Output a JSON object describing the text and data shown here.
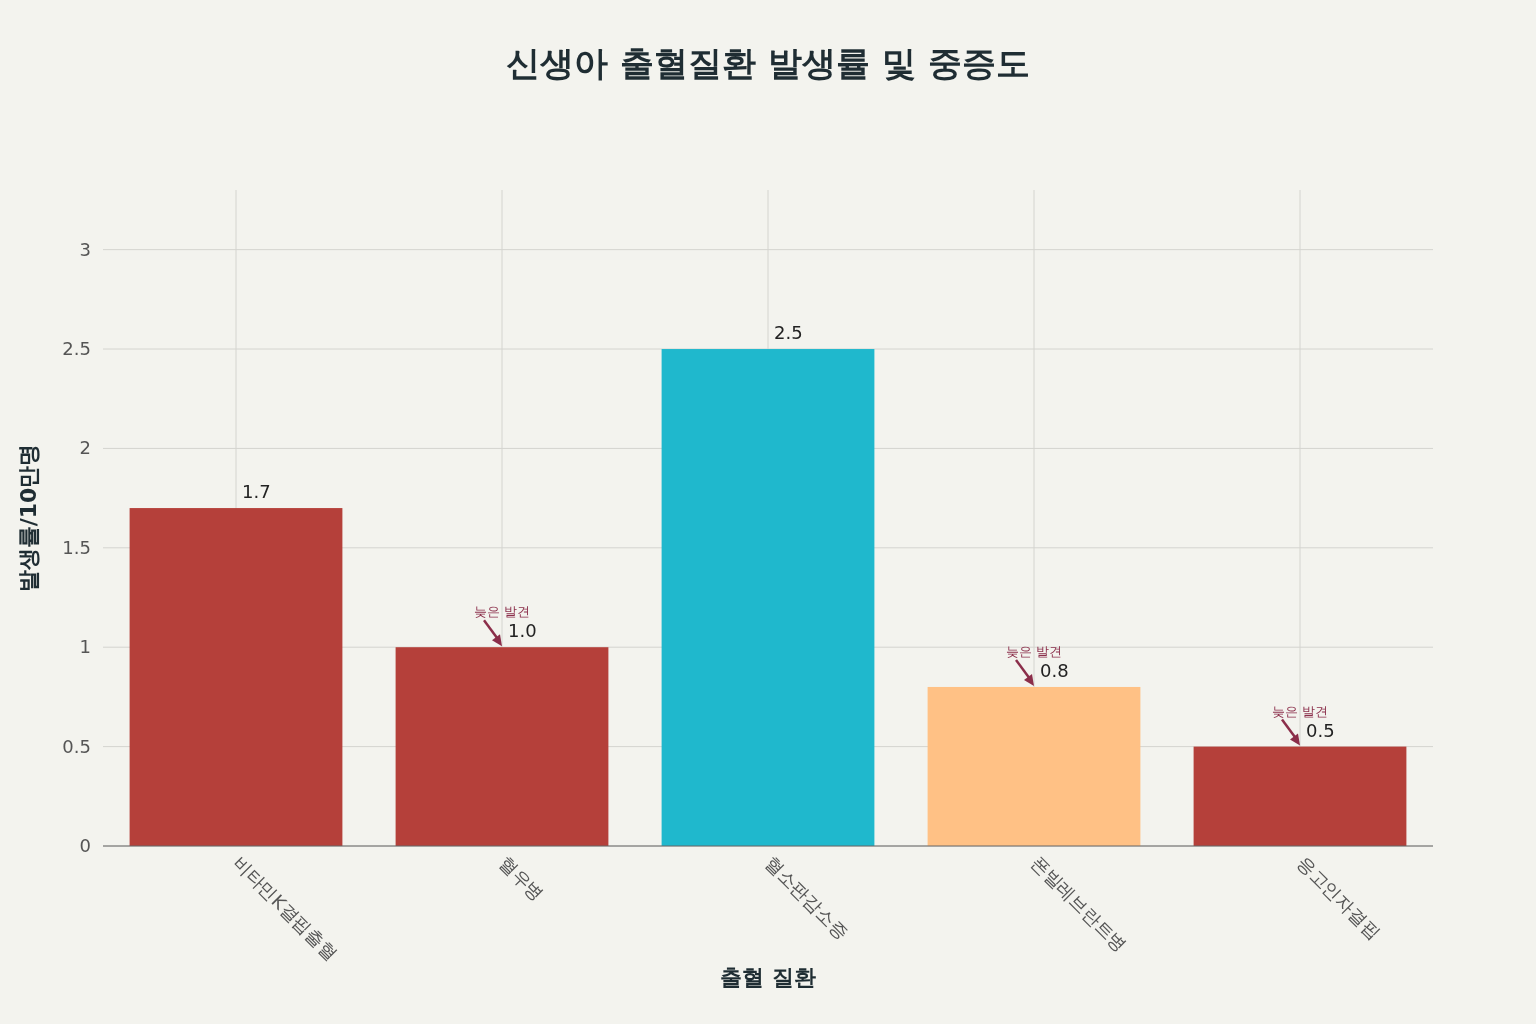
{
  "chart_data": {
    "type": "bar",
    "title": "신생아 출혈질환 발생률 및 중증도",
    "xlabel": "출혈 질환",
    "ylabel": "발생률/10만명",
    "categories": [
      "비타민K결핍출혈",
      "혈우병",
      "혈소판감소증",
      "폰빌레브란트병",
      "응고인자결핍"
    ],
    "values": [
      1.7,
      1.0,
      2.5,
      0.8,
      0.5
    ],
    "colors": [
      "#b5403a",
      "#b5403a",
      "#1fb8cd",
      "#ffc185",
      "#b5403a"
    ],
    "value_labels": [
      "1.7",
      "1.0",
      "2.5",
      "0.8",
      "0.5"
    ],
    "ylim": [
      0,
      3.3
    ],
    "yticks": [
      0,
      0.5,
      1,
      1.5,
      2,
      2.5,
      3
    ],
    "grid": true,
    "annotations": [
      {
        "text": "늦은 발견",
        "x": "혈우병",
        "y": 1.0
      },
      {
        "text": "늦은 발견",
        "x": "폰빌레브란트병",
        "y": 0.8
      },
      {
        "text": "늦은 발견",
        "x": "응고인자결핍",
        "y": 0.5
      }
    ]
  }
}
